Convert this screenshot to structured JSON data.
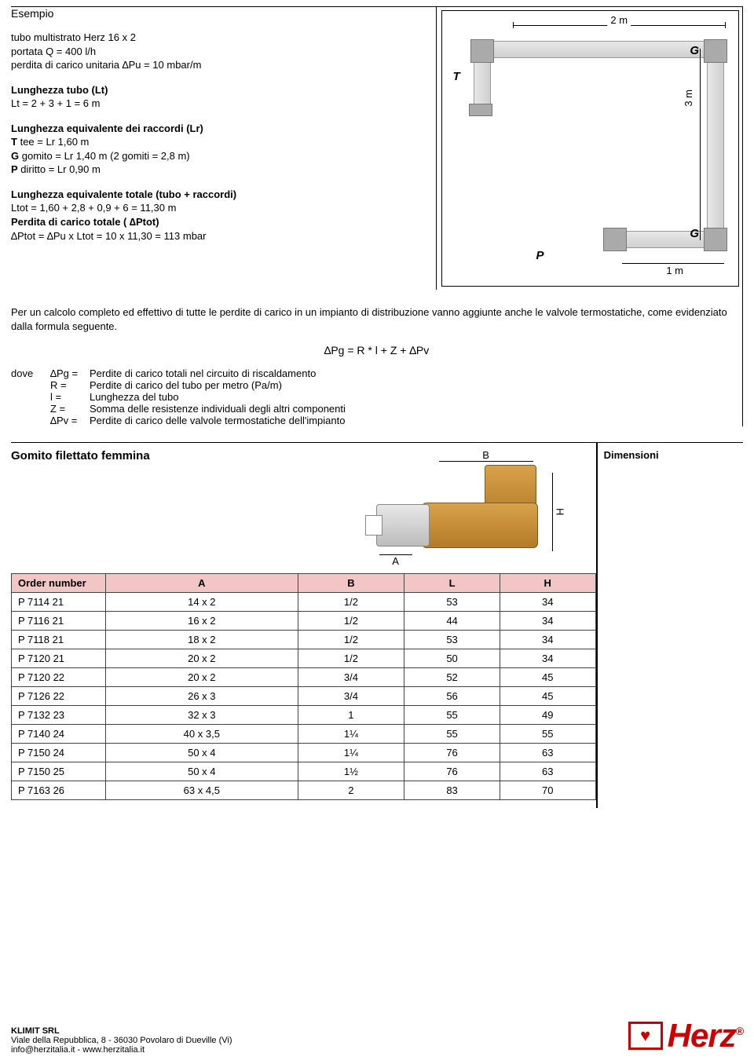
{
  "title": "Esempio",
  "intro": {
    "l1": "tubo multistrato Herz 16 x 2",
    "l2": "portata Q = 400 l/h",
    "l3": "perdita di carico unitaria ∆Pu = 10 mbar/m"
  },
  "lt": {
    "h": "Lunghezza tubo (Lt)",
    "v": "Lt = 2 + 3 + 1 = 6 m"
  },
  "lr": {
    "h": "Lunghezza equivalente dei raccordi (Lr)",
    "t": "T tee = Lr 1,60 m",
    "g": "G gomito = Lr 1,40 m  (2 gomiti = 2,8 m)",
    "p": "P diritto = Lr 0,90 m"
  },
  "ltot": {
    "h": "Lunghezza equivalente totale (tubo + raccordi)",
    "v": "Ltot = 1,60 + 2,8 + 0,9 + 6 = 11,30 m"
  },
  "ptot": {
    "h": "Perdita di carico totale ( ∆Ptot)",
    "v": "∆Ptot = ∆Pu x Ltot  = 10 x 11,30 = 113 mbar"
  },
  "note": "Per un calcolo completo ed effettivo di tutte le perdite di carico in un impianto di distribuzione vanno aggiunte anche le valvole termostatiche, come evidenziato dalla formula seguente.",
  "formula": "∆Pg = R * l + Z + ∆Pv",
  "dove": "dove",
  "defs": [
    {
      "sym": "∆Pg =",
      "desc": "Perdite di carico totali nel circuito di riscaldamento"
    },
    {
      "sym": "R =",
      "desc": "Perdite di carico del tubo per metro  (Pa/m)"
    },
    {
      "sym": "l =",
      "desc": "Lunghezza del tubo"
    },
    {
      "sym": "Z =",
      "desc": "Somma delle resistenze individuali degli altri componenti"
    },
    {
      "sym": "∆Pv =",
      "desc": "Perdite di carico delle valvole termostatiche dell'impianto"
    }
  ],
  "diagram": {
    "top": "2 m",
    "right": "3 m",
    "bottom": "1 m",
    "T": "T",
    "G": "G",
    "P": "P"
  },
  "product": {
    "title": "Gomito filettato femmina",
    "dim_heading": "Dimensioni",
    "dimB": "B",
    "dimH": "H",
    "dimA": "A"
  },
  "table": {
    "headers": [
      "Order number",
      "A",
      "B",
      "L",
      "H"
    ],
    "rows": [
      [
        "P 7114 21",
        "14 x 2",
        "1/2",
        "53",
        "34"
      ],
      [
        "P 7116 21",
        "16 x 2",
        "1/2",
        "44",
        "34"
      ],
      [
        "P 7118 21",
        "18 x 2",
        "1/2",
        "53",
        "34"
      ],
      [
        "P 7120 21",
        "20 x 2",
        "1/2",
        "50",
        "34"
      ],
      [
        "P 7120 22",
        "20 x 2",
        "3/4",
        "52",
        "45"
      ],
      [
        "P 7126 22",
        "26 x 3",
        "3/4",
        "56",
        "45"
      ],
      [
        "P 7132 23",
        "32 x 3",
        "1",
        "55",
        "49"
      ],
      [
        "P 7140 24",
        "40 x 3,5",
        "1¼",
        "55",
        "55"
      ],
      [
        "P 7150 24",
        "50 x 4",
        "1¼",
        "76",
        "63"
      ],
      [
        "P 7150 25",
        "50 x 4",
        "1½",
        "76",
        "63"
      ],
      [
        "P 7163 26",
        "63 x 4,5",
        "2",
        "83",
        "70"
      ]
    ],
    "header_bg": "#f3c6c6"
  },
  "footer": {
    "co": "KLIMIT SRL",
    "addr": "Viale della Repubblica, 8 - 36030 Povolaro di Dueville (Vi)",
    "contact": "info@herzitalia.it  -  www.herzitalia.it",
    "logo_text": "Herz",
    "logo_color": "#c00000"
  }
}
